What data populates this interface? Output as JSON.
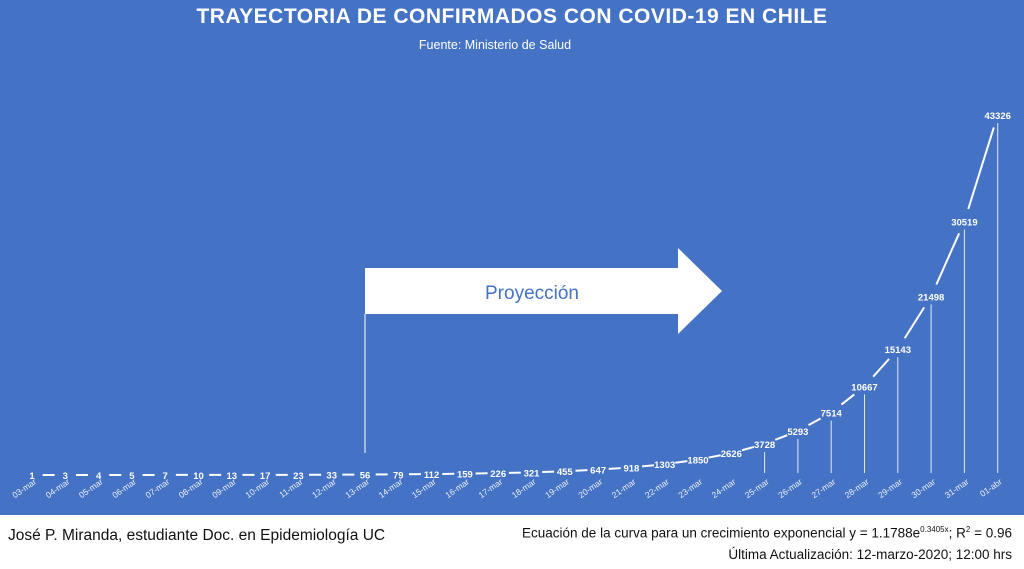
{
  "title": "TRAYECTORIA DE CONFIRMADOS CON COVID-19 EN CHILE",
  "subtitle": "Fuente: Ministerio de Salud",
  "annotation": {
    "label": "Proyección",
    "start_category": "13-mar"
  },
  "footer": {
    "author": "José P. Miranda, estudiante Doc. en Epidemiología UC",
    "equation_prefix": "Ecuación de la curva para un crecimiento exponencial y = 1.1788e",
    "equation_exponent": "0.3405x",
    "equation_suffix": "; R",
    "r2_exponent": "2",
    "r2_value": " = 0.96",
    "updated": "Última Actualización: 12-marzo-2020; 12:00 hrs"
  },
  "colors": {
    "background": "#4472c4",
    "line": "#ffffff",
    "arrow": "#ffffff",
    "arrow_text": "#4472c4"
  },
  "chart_data": {
    "type": "line",
    "title": "TRAYECTORIA DE CONFIRMADOS CON COVID-19 EN CHILE",
    "subtitle": "Fuente: Ministerio de Salud",
    "xlabel": "",
    "ylabel": "",
    "grid": false,
    "data_labels": true,
    "categories": [
      "03-mar",
      "04-mar",
      "05-mar",
      "06-mar",
      "07-mar",
      "08-mar",
      "09-mar",
      "10-mar",
      "11-mar",
      "12-mar",
      "13-mar",
      "14-mar",
      "15-mar",
      "16-mar",
      "17-mar",
      "18-mar",
      "19-mar",
      "20-mar",
      "21-mar",
      "22-mar",
      "23-mar",
      "24-mar",
      "25-mar",
      "26-mar",
      "27-mar",
      "28-mar",
      "29-mar",
      "30-mar",
      "31-mar",
      "01-abr"
    ],
    "series": [
      {
        "values": [
          1,
          3,
          4,
          5,
          7,
          10,
          13,
          17,
          23,
          33,
          56,
          79,
          112,
          159,
          226,
          321,
          455,
          647,
          918,
          1303,
          1850,
          2626,
          3728,
          5293,
          7514,
          10667,
          15143,
          21498,
          30519,
          43326
        ]
      }
    ],
    "ylim": [
      0,
      43326
    ]
  }
}
